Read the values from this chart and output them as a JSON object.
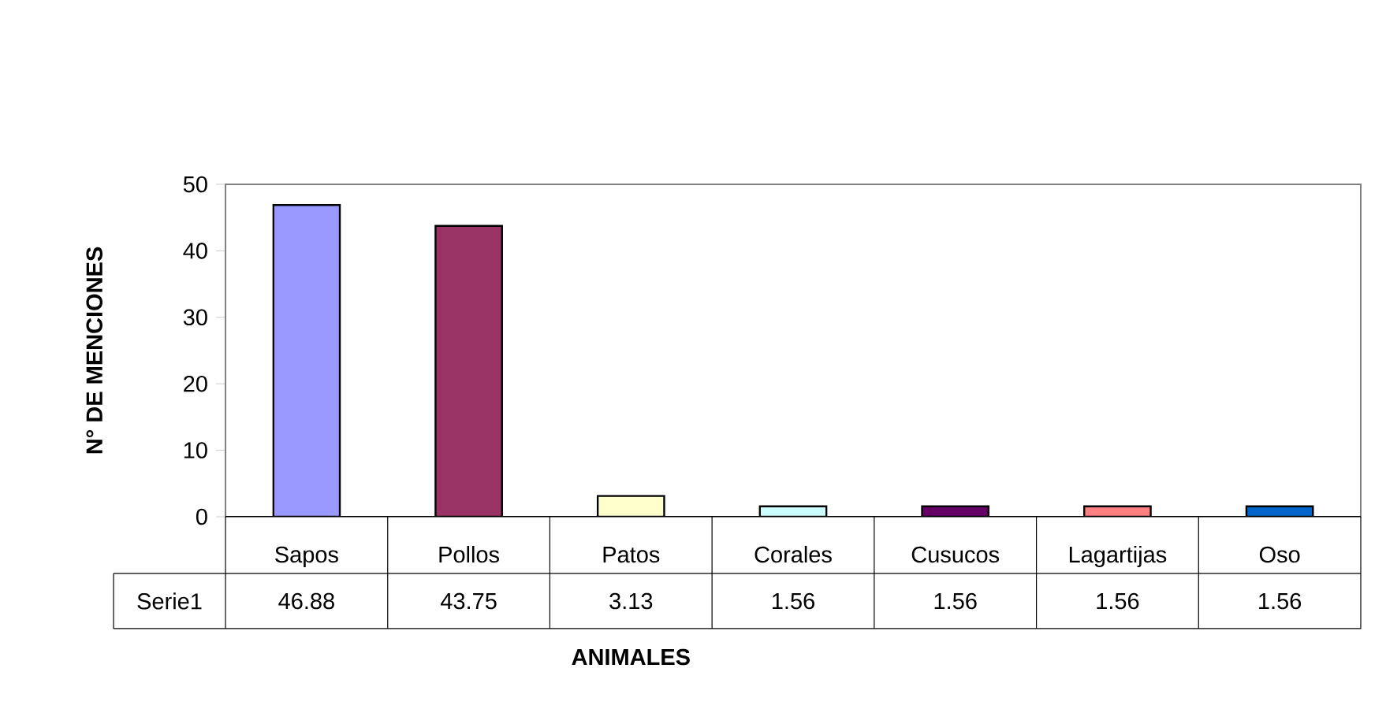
{
  "chart_data": {
    "type": "bar",
    "xlabel": "ANIMALES",
    "ylabel": "N° DE MENCIONES",
    "categories": [
      "Sapos",
      "Pollos",
      "Patos",
      "Corales",
      "Cusucos",
      "Lagartijas",
      "Oso"
    ],
    "series": [
      {
        "name": "Serie1",
        "values": [
          46.88,
          43.75,
          3.13,
          1.56,
          1.56,
          1.56,
          1.56
        ]
      }
    ],
    "colors": [
      "#9999ff",
      "#993366",
      "#ffffcc",
      "#ccffff",
      "#660066",
      "#ff8080",
      "#0066cc"
    ],
    "ylim": [
      0,
      50
    ],
    "yticks": [
      0,
      10,
      20,
      30,
      40,
      50
    ],
    "data_labels": true,
    "grid": false
  }
}
